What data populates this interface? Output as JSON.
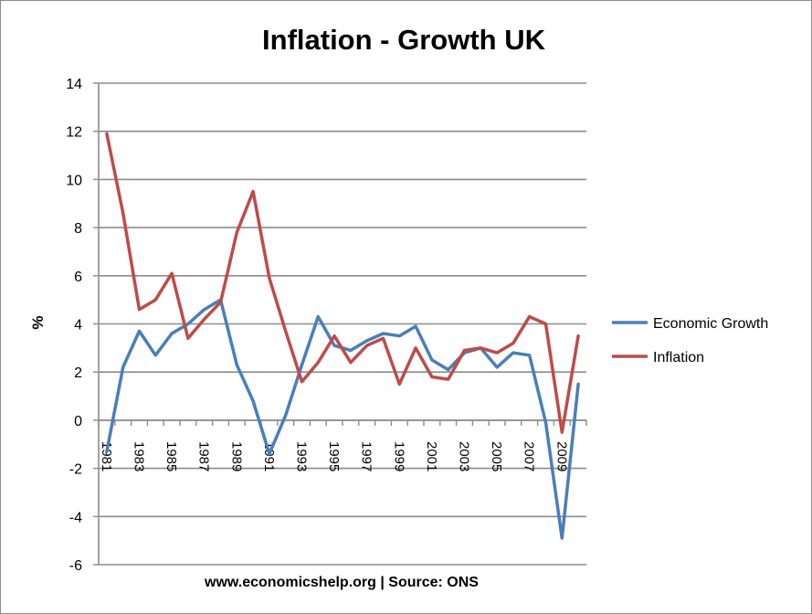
{
  "chart_data": {
    "type": "line",
    "title": "Inflation  - Growth UK",
    "xlabel": "www.economicshelp.org | Source: ONS",
    "ylabel": "%",
    "ylim": [
      -6,
      14
    ],
    "yticks": [
      -6,
      -4,
      -2,
      0,
      2,
      4,
      6,
      8,
      10,
      12,
      14
    ],
    "grid": true,
    "legend_position": "right",
    "x": [
      1981,
      1982,
      1983,
      1984,
      1985,
      1986,
      1987,
      1988,
      1989,
      1990,
      1991,
      1992,
      1993,
      1994,
      1995,
      1996,
      1997,
      1998,
      1999,
      2000,
      2001,
      2002,
      2003,
      2004,
      2005,
      2006,
      2007,
      2008,
      2009,
      2010
    ],
    "xtick_labels": [
      "1981",
      "1983",
      "1985",
      "1987",
      "1989",
      "1991",
      "1993",
      "1995",
      "1997",
      "1999",
      "2001",
      "2003",
      "2005",
      "2007",
      "2009"
    ],
    "series": [
      {
        "name": "Economic Growth",
        "color": "#4a7ebb",
        "values": [
          -1.3,
          2.2,
          3.7,
          2.7,
          3.6,
          4.0,
          4.6,
          5.0,
          2.3,
          0.8,
          -1.4,
          0.2,
          2.3,
          4.3,
          3.1,
          2.9,
          3.3,
          3.6,
          3.5,
          3.9,
          2.5,
          2.1,
          2.8,
          3.0,
          2.2,
          2.8,
          2.7,
          -0.1,
          -4.9,
          1.5
        ]
      },
      {
        "name": "Inflation",
        "color": "#be4b48",
        "values": [
          11.9,
          8.6,
          4.6,
          5.0,
          6.1,
          3.4,
          4.2,
          4.9,
          7.8,
          9.5,
          5.9,
          3.7,
          1.6,
          2.4,
          3.5,
          2.4,
          3.1,
          3.4,
          1.5,
          3.0,
          1.8,
          1.7,
          2.9,
          3.0,
          2.8,
          3.2,
          4.3,
          4.0,
          -0.5,
          3.5
        ]
      }
    ]
  }
}
